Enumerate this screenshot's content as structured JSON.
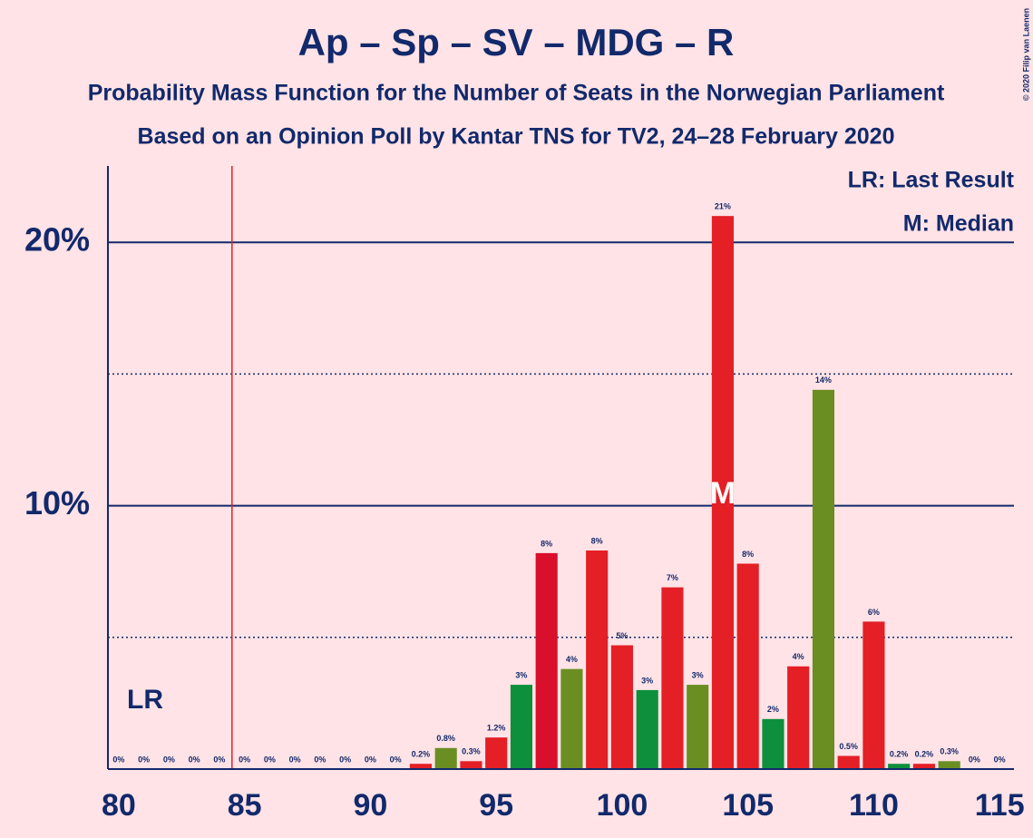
{
  "chart_data": {
    "type": "bar",
    "title": "Ap – Sp – SV – MDG – R",
    "subtitle": "Probability Mass Function for the Number of Seats in the Norwegian Parliament",
    "subtitle2": "Based on an Opinion Poll by Kantar TNS for TV2, 24–28 February 2020",
    "x": [
      80,
      81,
      82,
      83,
      84,
      85,
      86,
      87,
      88,
      89,
      90,
      91,
      92,
      93,
      94,
      95,
      96,
      97,
      98,
      99,
      100,
      101,
      102,
      103,
      104,
      105,
      106,
      107,
      108,
      109,
      110,
      111,
      112,
      113,
      114,
      115
    ],
    "values": [
      0,
      0,
      0,
      0,
      0,
      0,
      0,
      0,
      0,
      0,
      0,
      0,
      0.2,
      0.8,
      0.3,
      1.2,
      3.2,
      8.2,
      3.8,
      8.3,
      4.7,
      3.0,
      6.9,
      3.2,
      21.0,
      7.8,
      1.9,
      3.9,
      14.4,
      0.5,
      5.6,
      0.2,
      0.2,
      0.3,
      0,
      0
    ],
    "value_labels": [
      "0%",
      "0%",
      "0%",
      "0%",
      "0%",
      "0%",
      "0%",
      "0%",
      "0%",
      "0%",
      "0%",
      "0%",
      "0.2%",
      "0.8%",
      "0.3%",
      "1.2%",
      "3%",
      "8%",
      "4%",
      "8%",
      "5%",
      "3%",
      "7%",
      "3%",
      "21%",
      "8%",
      "2%",
      "4%",
      "14%",
      "0.5%",
      "6%",
      "0.2%",
      "0.2%",
      "0.3%",
      "0%",
      "0%"
    ],
    "colors": [
      "#e41f26",
      "#e41f26",
      "#e41f26",
      "#e41f26",
      "#e41f26",
      "#e41f26",
      "#e41f26",
      "#e41f26",
      "#e41f26",
      "#e41f26",
      "#e41f26",
      "#e41f26",
      "#e41f26",
      "#6b8e23",
      "#e41f26",
      "#e41f26",
      "#0d8f3c",
      "#d90f2b",
      "#6b8e23",
      "#e41f26",
      "#e41f26",
      "#0d8f3c",
      "#e41f26",
      "#6b8e23",
      "#e41f26",
      "#e41f26",
      "#0d8f3c",
      "#e41f26",
      "#6b8e23",
      "#e41f26",
      "#e41f26",
      "#0d8f3c",
      "#e41f26",
      "#6b8e23",
      "#e41f26",
      "#e41f26"
    ],
    "xlim": [
      79.57,
      115.57
    ],
    "xticks": [
      80,
      85,
      90,
      95,
      100,
      105,
      110,
      115
    ],
    "ylim": [
      0,
      22.9
    ],
    "yticks": [
      {
        "value": 10,
        "label": "10%"
      },
      {
        "value": 20,
        "label": "20%"
      }
    ],
    "minor_gridlines": [
      5,
      15
    ],
    "last_result": 84.5,
    "last_result_label": "LR",
    "median": 104,
    "median_label": "M",
    "legend": [
      "LR: Last Result",
      "M: Median"
    ],
    "copyright": "© 2020 Filip van Laenen"
  }
}
